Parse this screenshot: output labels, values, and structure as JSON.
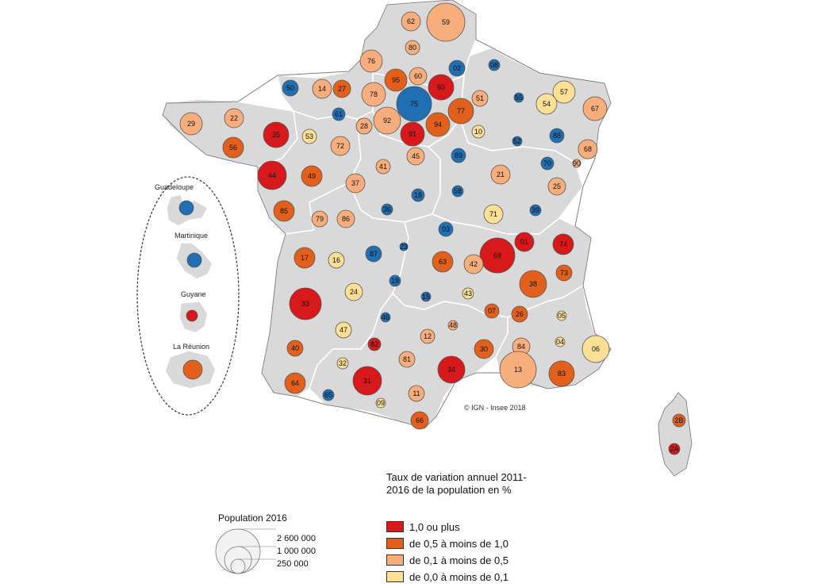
{
  "credit": "© IGN - Insee 2018",
  "legend": {
    "title": "Taux de variation annuel 2011-2016 de la population en %",
    "classes": [
      {
        "label": "1,0 ou plus",
        "color": "#d7191c"
      },
      {
        "label": "de 0,5 à moins de 1,0",
        "color": "#e3601c"
      },
      {
        "label": "de 0,1 à moins de 0,5",
        "color": "#f7ae7c"
      },
      {
        "label": "de 0,0 à moins de 0,1",
        "color": "#fddf95"
      }
    ],
    "negative_color": "#1f6fb2"
  },
  "population_legend": {
    "title": "Population 2016",
    "levels": [
      "2 600 000",
      "1 000 000",
      "250 000"
    ]
  },
  "overseas": [
    {
      "name": "Guadeloupe",
      "class": "neg"
    },
    {
      "name": "Martinique",
      "class": "neg"
    },
    {
      "name": "Guyane",
      "class": "c1"
    },
    {
      "name": "La Réunion",
      "class": "c2"
    }
  ],
  "departments": [
    {
      "code": "62",
      "class": "c3"
    },
    {
      "code": "59",
      "class": "c3"
    },
    {
      "code": "80",
      "class": "c3"
    },
    {
      "code": "02",
      "class": "neg"
    },
    {
      "code": "08",
      "class": "neg"
    },
    {
      "code": "76",
      "class": "c3"
    },
    {
      "code": "95",
      "class": "c2"
    },
    {
      "code": "60",
      "class": "c3"
    },
    {
      "code": "93",
      "class": "c1"
    },
    {
      "code": "50",
      "class": "neg"
    },
    {
      "code": "14",
      "class": "c3"
    },
    {
      "code": "27",
      "class": "c2"
    },
    {
      "code": "78",
      "class": "c3"
    },
    {
      "code": "75",
      "class": "neg"
    },
    {
      "code": "77",
      "class": "c2"
    },
    {
      "code": "51",
      "class": "c3"
    },
    {
      "code": "55",
      "class": "neg"
    },
    {
      "code": "57",
      "class": "c4"
    },
    {
      "code": "54",
      "class": "c4"
    },
    {
      "code": "67",
      "class": "c3"
    },
    {
      "code": "29",
      "class": "c3"
    },
    {
      "code": "22",
      "class": "c3"
    },
    {
      "code": "61",
      "class": "neg"
    },
    {
      "code": "28",
      "class": "c3"
    },
    {
      "code": "92",
      "class": "c3"
    },
    {
      "code": "94",
      "class": "c2"
    },
    {
      "code": "91",
      "class": "c1"
    },
    {
      "code": "10",
      "class": "c4"
    },
    {
      "code": "52",
      "class": "neg"
    },
    {
      "code": "88",
      "class": "neg"
    },
    {
      "code": "68",
      "class": "c3"
    },
    {
      "code": "35",
      "class": "c1"
    },
    {
      "code": "56",
      "class": "c2"
    },
    {
      "code": "53",
      "class": "c4"
    },
    {
      "code": "72",
      "class": "c3"
    },
    {
      "code": "45",
      "class": "c3"
    },
    {
      "code": "89",
      "class": "neg"
    },
    {
      "code": "70",
      "class": "neg"
    },
    {
      "code": "90",
      "class": "c3"
    },
    {
      "code": "44",
      "class": "c1"
    },
    {
      "code": "49",
      "class": "c2"
    },
    {
      "code": "41",
      "class": "c3"
    },
    {
      "code": "37",
      "class": "c3"
    },
    {
      "code": "21",
      "class": "c3"
    },
    {
      "code": "25",
      "class": "c3"
    },
    {
      "code": "18",
      "class": "neg"
    },
    {
      "code": "58",
      "class": "neg"
    },
    {
      "code": "85",
      "class": "c2"
    },
    {
      "code": "79",
      "class": "c3"
    },
    {
      "code": "86",
      "class": "c3"
    },
    {
      "code": "36",
      "class": "neg"
    },
    {
      "code": "71",
      "class": "c4"
    },
    {
      "code": "39",
      "class": "neg"
    },
    {
      "code": "03",
      "class": "neg"
    },
    {
      "code": "01",
      "class": "c1"
    },
    {
      "code": "74",
      "class": "c1"
    },
    {
      "code": "69",
      "class": "c1"
    },
    {
      "code": "17",
      "class": "c2"
    },
    {
      "code": "16",
      "class": "c4"
    },
    {
      "code": "87",
      "class": "neg"
    },
    {
      "code": "23",
      "class": "neg"
    },
    {
      "code": "63",
      "class": "c2"
    },
    {
      "code": "42",
      "class": "c3"
    },
    {
      "code": "73",
      "class": "c2"
    },
    {
      "code": "38",
      "class": "c2"
    },
    {
      "code": "19",
      "class": "neg"
    },
    {
      "code": "15",
      "class": "neg"
    },
    {
      "code": "43",
      "class": "c4"
    },
    {
      "code": "33",
      "class": "c1"
    },
    {
      "code": "24",
      "class": "c4"
    },
    {
      "code": "07",
      "class": "c2"
    },
    {
      "code": "26",
      "class": "c2"
    },
    {
      "code": "05",
      "class": "c4"
    },
    {
      "code": "46",
      "class": "neg"
    },
    {
      "code": "47",
      "class": "c4"
    },
    {
      "code": "48",
      "class": "c3"
    },
    {
      "code": "12",
      "class": "c3"
    },
    {
      "code": "84",
      "class": "c3"
    },
    {
      "code": "04",
      "class": "c4"
    },
    {
      "code": "06",
      "class": "c4"
    },
    {
      "code": "40",
      "class": "c2"
    },
    {
      "code": "82",
      "class": "c1"
    },
    {
      "code": "30",
      "class": "c2"
    },
    {
      "code": "32",
      "class": "c4"
    },
    {
      "code": "81",
      "class": "c3"
    },
    {
      "code": "13",
      "class": "c3"
    },
    {
      "code": "83",
      "class": "c2"
    },
    {
      "code": "31",
      "class": "c1"
    },
    {
      "code": "34",
      "class": "c1"
    },
    {
      "code": "64",
      "class": "c2"
    },
    {
      "code": "65",
      "class": "neg"
    },
    {
      "code": "09",
      "class": "c4"
    },
    {
      "code": "11",
      "class": "c3"
    },
    {
      "code": "66",
      "class": "c2"
    },
    {
      "code": "2B",
      "class": "c2"
    },
    {
      "code": "2A",
      "class": "c1"
    }
  ]
}
